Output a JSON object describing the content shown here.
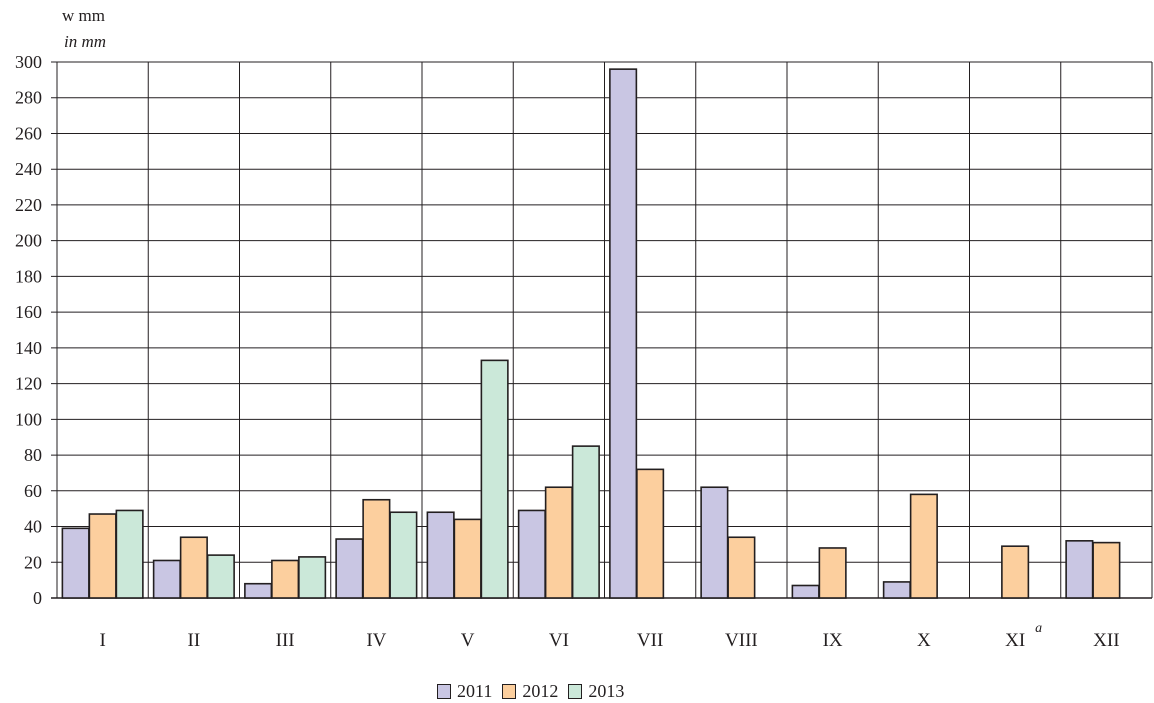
{
  "chart_data": {
    "type": "bar",
    "ylabel": "w mm",
    "ylabel_en": "in mm",
    "categories": [
      "I",
      "II",
      "III",
      "IV",
      "V",
      "VI",
      "VII",
      "VIII",
      "IX",
      "X",
      "XI",
      "XII"
    ],
    "footnote_mark": "a",
    "footnote_category": "XI",
    "series": [
      {
        "name": "2011",
        "color": "#c9c6e3",
        "values": [
          39,
          21,
          8,
          33,
          48,
          49,
          296,
          62,
          7,
          9,
          null,
          32
        ]
      },
      {
        "name": "2012",
        "color": "#fccf9e",
        "values": [
          47,
          34,
          21,
          55,
          44,
          62,
          72,
          34,
          28,
          58,
          29,
          31
        ]
      },
      {
        "name": "2013",
        "color": "#cbe8d9",
        "values": [
          49,
          24,
          23,
          48,
          133,
          85,
          null,
          null,
          null,
          null,
          null,
          null
        ]
      }
    ],
    "ylim": [
      0,
      300
    ],
    "yticks": [
      0,
      20,
      40,
      60,
      80,
      100,
      120,
      140,
      160,
      180,
      200,
      220,
      240,
      260,
      280,
      300
    ],
    "grid": true,
    "legend_position": "bottom-center"
  }
}
